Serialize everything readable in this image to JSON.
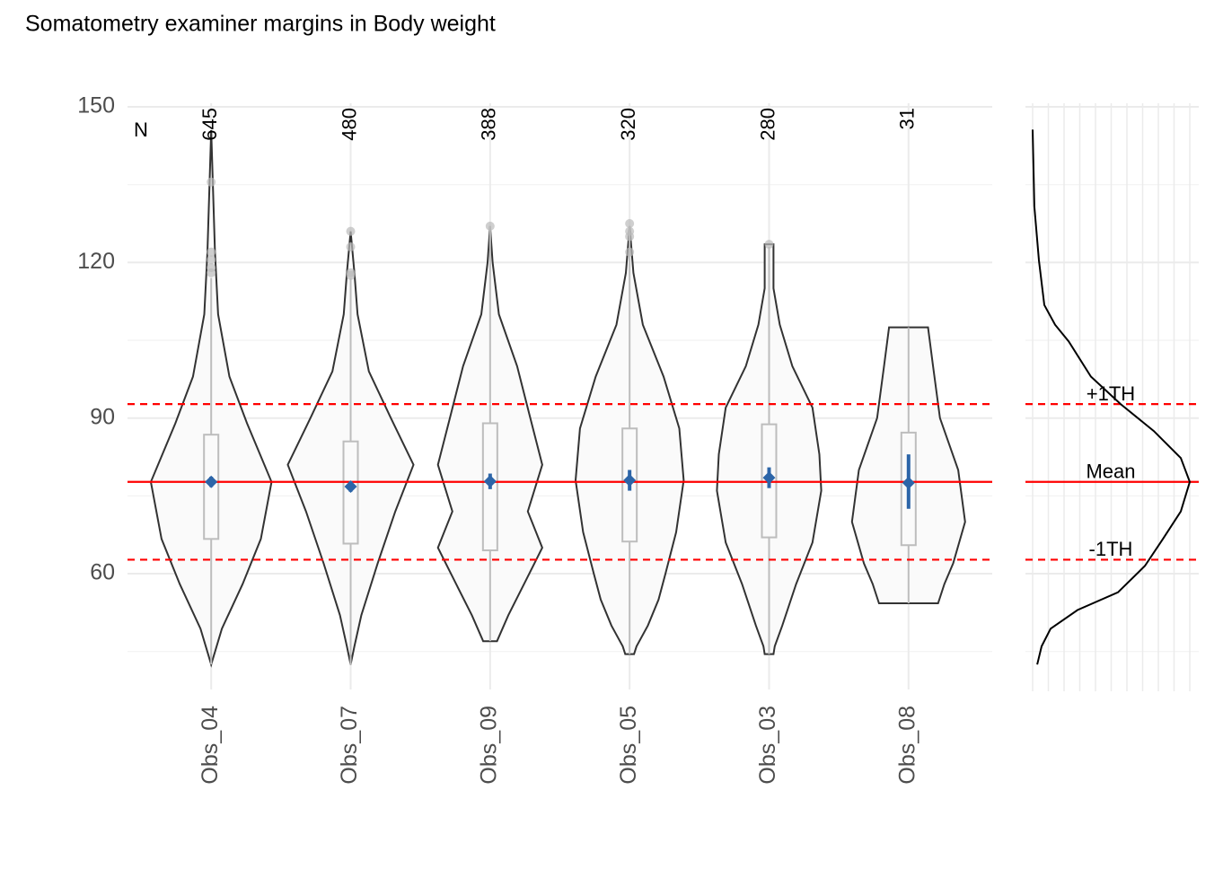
{
  "chart_data": {
    "type": "violin",
    "title": "Somatometry examiner margins in Body weight",
    "categories": [
      "Obs_04",
      "Obs_07",
      "Obs_09",
      "Obs_05",
      "Obs_03",
      "Obs_08"
    ],
    "n_label": "N",
    "n": [
      645,
      480,
      388,
      320,
      280,
      31
    ],
    "violins": [
      {
        "y": [
          145.5,
          122,
          110,
          98,
          89,
          77.7,
          66.7,
          58,
          49.4,
          42.5
        ],
        "w": [
          0,
          0.06,
          0.11,
          0.29,
          0.57,
          0.96,
          0.79,
          0.5,
          0.17,
          0
        ]
      },
      {
        "y": [
          126,
          118,
          110,
          99,
          90,
          81,
          72,
          62,
          52,
          46,
          42.5
        ],
        "w": [
          0,
          0.06,
          0.11,
          0.29,
          0.64,
          1,
          0.71,
          0.43,
          0.17,
          0.06,
          0
        ]
      },
      {
        "y": [
          127,
          120,
          110,
          100,
          90,
          81,
          72,
          65,
          58,
          52,
          47
        ],
        "w": [
          0,
          0.04,
          0.14,
          0.43,
          0.64,
          0.83,
          0.6,
          0.83,
          0.54,
          0.29,
          0.11
        ]
      },
      {
        "y": [
          127,
          118,
          108,
          98,
          88,
          78,
          68,
          60,
          55,
          50,
          46,
          44.5
        ],
        "w": [
          0,
          0.06,
          0.21,
          0.54,
          0.79,
          0.86,
          0.74,
          0.57,
          0.46,
          0.29,
          0.11,
          0.07
        ]
      },
      {
        "y": [
          123.5,
          115,
          108,
          100,
          92,
          83,
          76,
          66,
          58,
          50,
          46,
          44.5
        ],
        "w": [
          0.07,
          0.07,
          0.17,
          0.37,
          0.69,
          0.8,
          0.83,
          0.69,
          0.43,
          0.21,
          0.09,
          0.07
        ]
      },
      {
        "y": [
          107.5,
          100,
          90,
          80,
          70,
          62,
          58,
          54.3
        ],
        "w": [
          0.31,
          0.39,
          0.5,
          0.79,
          0.9,
          0.71,
          0.57,
          0.47
        ]
      }
    ],
    "q1": [
      66.7,
      65.8,
      64.5,
      66.2,
      67,
      65.5
    ],
    "q3": [
      86.8,
      85.5,
      89,
      88,
      88.8,
      87.2
    ],
    "whisker_lo": [
      42.5,
      42.5,
      47,
      44.5,
      44.5,
      54.3
    ],
    "whisker_hi": [
      117,
      117,
      127,
      127,
      123,
      107.5
    ],
    "outliers": [
      [
        135.5,
        122,
        120.5,
        119,
        118
      ],
      [
        126,
        123,
        118,
        117.5
      ],
      [
        127
      ],
      [
        127.5,
        126,
        125,
        122
      ],
      [
        123.5
      ],
      []
    ],
    "mean": [
      77.7,
      76.8,
      77.8,
      78,
      78.5,
      77.5
    ],
    "ci_lo": [
      76.7,
      75.8,
      76.3,
      76,
      76.5,
      72.5
    ],
    "ci_hi": [
      78.7,
      77.8,
      79.3,
      80,
      80.5,
      83
    ],
    "mean_color": "#2c65a8",
    "reference_lines": [
      {
        "label": "+1TH",
        "value": 92.7,
        "dashed": true
      },
      {
        "label": "Mean",
        "value": 77.7,
        "dashed": false
      },
      {
        "label": "-1TH",
        "value": 62.7,
        "dashed": true
      }
    ],
    "reference_color": "#ff0000",
    "ylim": [
      40,
      150
    ],
    "yticks": [
      60,
      90,
      120,
      150
    ],
    "yticks_minor": [
      45,
      75,
      105,
      135
    ],
    "density": {
      "y": [
        145.6,
        130.8,
        120.4,
        111.8,
        108,
        104.8,
        98,
        92.7,
        87.5,
        82.3,
        77.7,
        72,
        66.7,
        61.5,
        56.4,
        53,
        49.4,
        46,
        42.5
      ],
      "x": [
        0,
        0.011,
        0.04,
        0.074,
        0.143,
        0.229,
        0.371,
        0.56,
        0.771,
        0.943,
        1,
        0.943,
        0.829,
        0.714,
        0.543,
        0.286,
        0.114,
        0.057,
        0.029
      ]
    },
    "density_xlim": [
      0,
      1
    ],
    "density_xticks": [
      0,
      0.1,
      0.2,
      0.3,
      0.4,
      0.5,
      0.6,
      0.7,
      0.8,
      0.9,
      1
    ]
  }
}
